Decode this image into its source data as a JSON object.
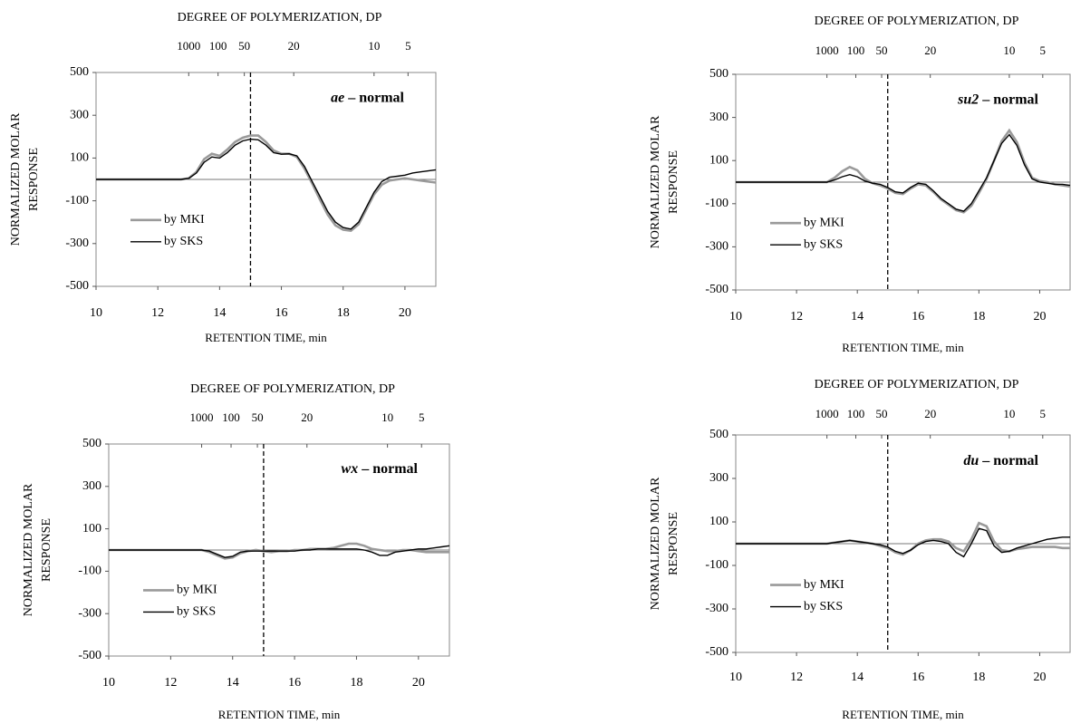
{
  "chart_data": [
    {
      "type": "line",
      "title": "DEGREE OF POLYMERIZATION, DP",
      "xlabel": "RETENTION TIME, min",
      "ylabel": [
        "NORMALIZED MOLAR",
        "RESPONSE"
      ],
      "strain": "ae",
      "annotation": "– normal",
      "xlim": [
        10,
        21
      ],
      "xticks": [
        10,
        12,
        14,
        16,
        18,
        20
      ],
      "ylim": [
        -500,
        500
      ],
      "yticks": [
        -500,
        -300,
        -100,
        100,
        300,
        500
      ],
      "x2ticks": [
        {
          "value": 13.0,
          "label": "1000"
        },
        {
          "value": 13.95,
          "label": "100"
        },
        {
          "value": 14.8,
          "label": "50"
        },
        {
          "value": 16.4,
          "label": "20"
        },
        {
          "value": 19.0,
          "label": "10"
        },
        {
          "value": 20.1,
          "label": "5"
        }
      ],
      "vline": 15,
      "x": [
        10,
        10.25,
        10.5,
        10.75,
        11,
        11.25,
        11.5,
        11.75,
        12,
        12.25,
        12.5,
        12.75,
        13,
        13.25,
        13.5,
        13.75,
        14,
        14.25,
        14.5,
        14.75,
        15,
        15.25,
        15.5,
        15.75,
        16,
        16.25,
        16.5,
        16.75,
        17,
        17.25,
        17.5,
        17.75,
        18,
        18.25,
        18.5,
        18.75,
        19,
        19.25,
        19.5,
        19.75,
        20,
        20.25,
        20.5,
        20.75,
        21
      ],
      "series": [
        {
          "name": "by MKI",
          "color": "#9a9a9a",
          "values": [
            0,
            0,
            0,
            0,
            0,
            0,
            0,
            0,
            0,
            0,
            0,
            0,
            5,
            35,
            95,
            120,
            110,
            140,
            175,
            195,
            205,
            205,
            175,
            135,
            120,
            120,
            105,
            50,
            -20,
            -95,
            -165,
            -215,
            -235,
            -240,
            -210,
            -140,
            -70,
            -25,
            -5,
            0,
            5,
            0,
            -5,
            -10,
            -15
          ]
        },
        {
          "name": "by SKS",
          "color": "#000000",
          "values": [
            0,
            0,
            0,
            0,
            0,
            0,
            0,
            0,
            0,
            0,
            0,
            0,
            5,
            30,
            80,
            105,
            100,
            125,
            160,
            180,
            188,
            185,
            160,
            125,
            118,
            120,
            110,
            60,
            -10,
            -80,
            -150,
            -200,
            -225,
            -232,
            -200,
            -130,
            -60,
            -10,
            10,
            15,
            20,
            30,
            35,
            40,
            45
          ]
        }
      ]
    },
    {
      "type": "line",
      "title": "DEGREE OF POLYMERIZATION, DP",
      "xlabel": "RETENTION TIME, min",
      "ylabel": [
        "NORMALIZED MOLAR",
        "RESPONSE"
      ],
      "strain": "su2",
      "annotation": "– normal",
      "xlim": [
        10,
        21
      ],
      "xticks": [
        10,
        12,
        14,
        16,
        18,
        20
      ],
      "ylim": [
        -500,
        500
      ],
      "yticks": [
        -500,
        -300,
        -100,
        100,
        300,
        500
      ],
      "x2ticks": [
        {
          "value": 13.0,
          "label": "1000"
        },
        {
          "value": 13.95,
          "label": "100"
        },
        {
          "value": 14.8,
          "label": "50"
        },
        {
          "value": 16.4,
          "label": "20"
        },
        {
          "value": 19.0,
          "label": "10"
        },
        {
          "value": 20.1,
          "label": "5"
        }
      ],
      "vline": 15,
      "x": [
        10,
        10.25,
        10.5,
        10.75,
        11,
        11.25,
        11.5,
        11.75,
        12,
        12.25,
        12.5,
        12.75,
        13,
        13.25,
        13.5,
        13.75,
        14,
        14.25,
        14.5,
        14.75,
        15,
        15.25,
        15.5,
        15.75,
        16,
        16.25,
        16.5,
        16.75,
        17,
        17.25,
        17.5,
        17.75,
        18,
        18.25,
        18.5,
        18.75,
        19,
        19.25,
        19.5,
        19.75,
        20,
        20.25,
        20.5,
        20.75,
        21
      ],
      "series": [
        {
          "name": "by MKI",
          "color": "#9a9a9a",
          "values": [
            0,
            0,
            0,
            0,
            0,
            0,
            0,
            0,
            0,
            0,
            0,
            0,
            0,
            20,
            50,
            70,
            55,
            15,
            -5,
            -15,
            -30,
            -50,
            -55,
            -30,
            -10,
            -15,
            -45,
            -80,
            -105,
            -130,
            -140,
            -110,
            -50,
            15,
            100,
            190,
            240,
            185,
            90,
            20,
            5,
            0,
            -10,
            -15,
            -20
          ]
        },
        {
          "name": "by SKS",
          "color": "#000000",
          "values": [
            0,
            0,
            0,
            0,
            0,
            0,
            0,
            0,
            0,
            0,
            0,
            0,
            0,
            10,
            25,
            35,
            25,
            5,
            -5,
            -10,
            -25,
            -45,
            -50,
            -25,
            -5,
            -10,
            -40,
            -75,
            -100,
            -125,
            -135,
            -100,
            -40,
            20,
            100,
            180,
            220,
            170,
            80,
            15,
            0,
            -5,
            -10,
            -10,
            -15
          ]
        }
      ]
    },
    {
      "type": "line",
      "title": "DEGREE OF POLYMERIZATION, DP",
      "xlabel": "RETENTION TIME, min",
      "ylabel": [
        "NORMALIZED MOLAR",
        "RESPONSE"
      ],
      "strain": "wx",
      "annotation": "– normal",
      "xlim": [
        10,
        21
      ],
      "xticks": [
        10,
        12,
        14,
        16,
        18,
        20
      ],
      "ylim": [
        -500,
        500
      ],
      "yticks": [
        -500,
        -300,
        -100,
        100,
        300,
        500
      ],
      "x2ticks": [
        {
          "value": 13.0,
          "label": "1000"
        },
        {
          "value": 13.95,
          "label": "100"
        },
        {
          "value": 14.8,
          "label": "50"
        },
        {
          "value": 16.4,
          "label": "20"
        },
        {
          "value": 19.0,
          "label": "10"
        },
        {
          "value": 20.1,
          "label": "5"
        }
      ],
      "vline": 15,
      "x": [
        10,
        10.25,
        10.5,
        10.75,
        11,
        11.25,
        11.5,
        11.75,
        12,
        12.25,
        12.5,
        12.75,
        13,
        13.25,
        13.5,
        13.75,
        14,
        14.25,
        14.5,
        14.75,
        15,
        15.25,
        15.5,
        15.75,
        16,
        16.25,
        16.5,
        16.75,
        17,
        17.25,
        17.5,
        17.75,
        18,
        18.25,
        18.5,
        18.75,
        19,
        19.25,
        19.5,
        19.75,
        20,
        20.25,
        20.5,
        20.75,
        21
      ],
      "series": [
        {
          "name": "by MKI",
          "color": "#9a9a9a",
          "values": [
            0,
            0,
            0,
            0,
            0,
            0,
            0,
            0,
            0,
            0,
            0,
            0,
            0,
            -10,
            -25,
            -40,
            -35,
            -15,
            -5,
            0,
            -5,
            -10,
            -5,
            -5,
            0,
            0,
            5,
            5,
            5,
            10,
            20,
            30,
            30,
            20,
            5,
            0,
            -5,
            -5,
            0,
            0,
            -5,
            -10,
            -10,
            -10,
            -10
          ]
        },
        {
          "name": "by SKS",
          "color": "#000000",
          "values": [
            0,
            0,
            0,
            0,
            0,
            0,
            0,
            0,
            0,
            0,
            0,
            0,
            0,
            -5,
            -20,
            -35,
            -30,
            -10,
            -5,
            -5,
            -5,
            -5,
            -5,
            -5,
            -5,
            0,
            0,
            5,
            5,
            5,
            5,
            5,
            5,
            0,
            -10,
            -25,
            -25,
            -10,
            -5,
            0,
            5,
            5,
            10,
            15,
            20
          ]
        }
      ]
    },
    {
      "type": "line",
      "title": "DEGREE OF POLYMERIZATION, DP",
      "xlabel": "RETENTION TIME, min",
      "ylabel": [
        "NORMALIZED MOLAR",
        "RESPONSE"
      ],
      "strain": "du",
      "annotation": "– normal",
      "xlim": [
        10,
        21
      ],
      "xticks": [
        10,
        12,
        14,
        16,
        18,
        20
      ],
      "ylim": [
        -500,
        500
      ],
      "yticks": [
        -500,
        -300,
        -100,
        100,
        300,
        500
      ],
      "x2ticks": [
        {
          "value": 13.0,
          "label": "1000"
        },
        {
          "value": 13.95,
          "label": "100"
        },
        {
          "value": 14.8,
          "label": "50"
        },
        {
          "value": 16.4,
          "label": "20"
        },
        {
          "value": 19.0,
          "label": "10"
        },
        {
          "value": 20.1,
          "label": "5"
        }
      ],
      "vline": 15,
      "x": [
        10,
        10.25,
        10.5,
        10.75,
        11,
        11.25,
        11.5,
        11.75,
        12,
        12.25,
        12.5,
        12.75,
        13,
        13.25,
        13.5,
        13.75,
        14,
        14.25,
        14.5,
        14.75,
        15,
        15.25,
        15.5,
        15.75,
        16,
        16.25,
        16.5,
        16.75,
        17,
        17.25,
        17.5,
        17.75,
        18,
        18.25,
        18.5,
        18.75,
        19,
        19.25,
        19.5,
        19.75,
        20,
        20.25,
        20.5,
        20.75,
        21
      ],
      "series": [
        {
          "name": "by MKI",
          "color": "#9a9a9a",
          "values": [
            0,
            0,
            0,
            0,
            0,
            0,
            0,
            0,
            0,
            0,
            0,
            0,
            0,
            5,
            10,
            15,
            10,
            5,
            0,
            -10,
            -20,
            -40,
            -50,
            -30,
            0,
            15,
            20,
            20,
            10,
            -20,
            -35,
            20,
            95,
            80,
            10,
            -30,
            -35,
            -25,
            -20,
            -15,
            -15,
            -15,
            -15,
            -20,
            -20
          ]
        },
        {
          "name": "by SKS",
          "color": "#000000",
          "values": [
            0,
            0,
            0,
            0,
            0,
            0,
            0,
            0,
            0,
            0,
            0,
            0,
            0,
            5,
            10,
            15,
            10,
            5,
            0,
            -5,
            -15,
            -35,
            -45,
            -30,
            -5,
            10,
            15,
            10,
            0,
            -40,
            -60,
            0,
            70,
            60,
            -10,
            -40,
            -35,
            -20,
            -10,
            0,
            10,
            20,
            25,
            30,
            30
          ]
        }
      ]
    }
  ]
}
